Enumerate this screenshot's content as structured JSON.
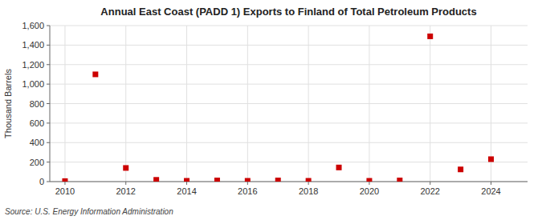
{
  "chart_data": {
    "type": "scatter",
    "title": "Annual East Coast (PADD 1) Exports to Finland of Total Petroleum Products",
    "ylabel": "Thousand Barrels",
    "annotation": "Source: U.S. Energy Information Administration",
    "x": [
      2010,
      2011,
      2012,
      2013,
      2014,
      2015,
      2016,
      2017,
      2018,
      2019,
      2020,
      2021,
      2022,
      2023,
      2024
    ],
    "values": [
      5,
      1100,
      140,
      18,
      8,
      12,
      8,
      12,
      8,
      145,
      8,
      12,
      1490,
      125,
      230
    ],
    "color": "#cc0000",
    "marker": "square",
    "xlim": [
      2009.5,
      2025.2
    ],
    "xticks": [
      2010,
      2012,
      2014,
      2016,
      2018,
      2020,
      2022,
      2024
    ],
    "ylim": [
      0,
      1600
    ],
    "yticks": [
      0,
      200,
      400,
      600,
      800,
      {
        "value": 1000,
        "label": "1,000"
      },
      {
        "value": 1200,
        "label": "1,200"
      },
      {
        "value": 1400,
        "label": "1,400"
      },
      {
        "value": 1600,
        "label": "1,600"
      }
    ],
    "grid": true
  }
}
